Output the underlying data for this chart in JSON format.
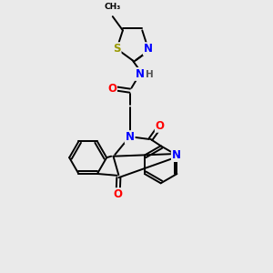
{
  "background_color": "#eaeaea",
  "atom_colors": {
    "C": "#000000",
    "N": "#0000FF",
    "O": "#FF0000",
    "S": "#999900",
    "H": "#555555"
  },
  "bond_color": "#000000",
  "bond_width": 1.4,
  "font_size": 8.5,
  "xlim": [
    0,
    10
  ],
  "ylim": [
    0,
    10
  ]
}
